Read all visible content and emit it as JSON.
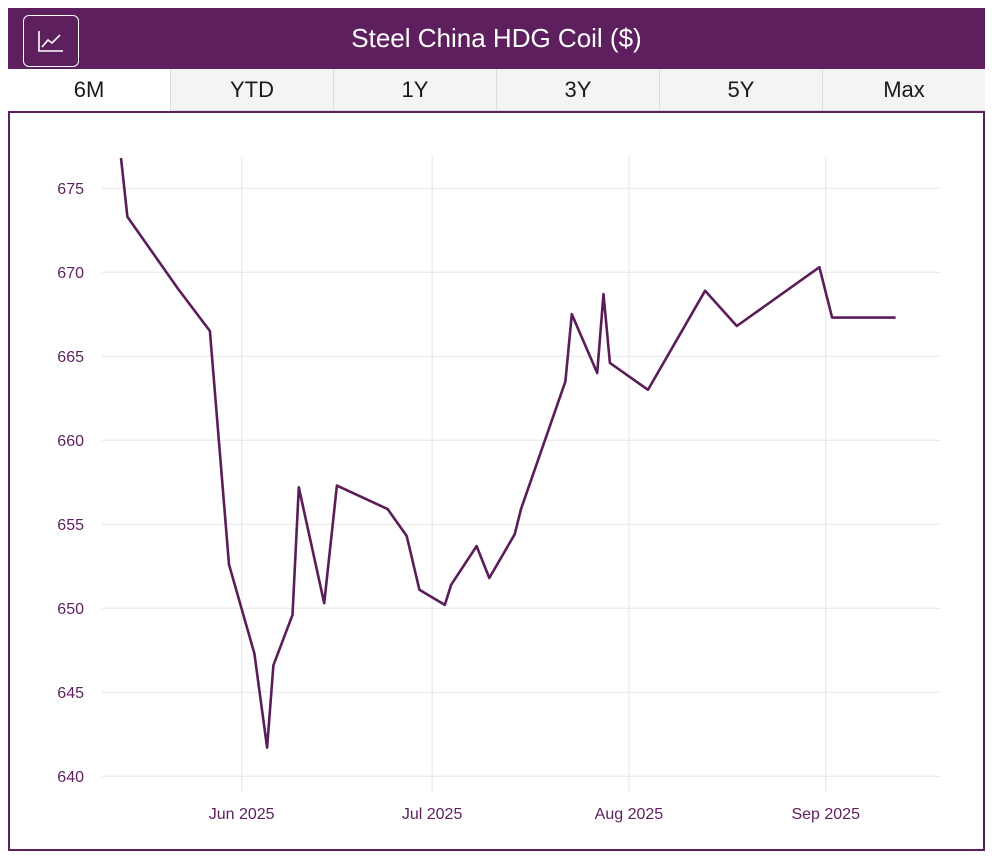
{
  "header": {
    "title": "Steel China HDG Coil ($)",
    "chart_button_icon": "line-chart-icon"
  },
  "tabs": [
    {
      "label": "6M",
      "active": true
    },
    {
      "label": "YTD",
      "active": false
    },
    {
      "label": "1Y",
      "active": false
    },
    {
      "label": "3Y",
      "active": false
    },
    {
      "label": "5Y",
      "active": false
    },
    {
      "label": "Max",
      "active": false
    }
  ],
  "colors": {
    "accent": "#5e1f5f",
    "line": "#5a1d58",
    "grid": "#e6e6e6"
  },
  "chart_data": {
    "type": "line",
    "title": "",
    "xlabel": "",
    "ylabel": "",
    "ylim": [
      639,
      676.8
    ],
    "xlim": [
      "2025-05-10",
      "2025-09-19"
    ],
    "y_ticks": [
      640,
      645,
      650,
      655,
      660,
      665,
      670,
      675
    ],
    "x_ticks": [
      {
        "date": "2025-06-01",
        "label": "Jun 2025"
      },
      {
        "date": "2025-07-01",
        "label": "Jul 2025"
      },
      {
        "date": "2025-08-01",
        "label": "Aug 2025"
      },
      {
        "date": "2025-09-01",
        "label": "Sep 2025"
      }
    ],
    "grid": true,
    "series": [
      {
        "points": [
          {
            "x": "2025-05-13",
            "y": 676.8
          },
          {
            "x": "2025-05-14",
            "y": 673.3
          },
          {
            "x": "2025-05-22",
            "y": 669.0
          },
          {
            "x": "2025-05-27",
            "y": 666.5
          },
          {
            "x": "2025-05-30",
            "y": 652.6
          },
          {
            "x": "2025-06-03",
            "y": 647.3
          },
          {
            "x": "2025-06-05",
            "y": 641.7
          },
          {
            "x": "2025-06-06",
            "y": 646.6
          },
          {
            "x": "2025-06-09",
            "y": 649.6
          },
          {
            "x": "2025-06-10",
            "y": 657.2
          },
          {
            "x": "2025-06-14",
            "y": 650.3
          },
          {
            "x": "2025-06-16",
            "y": 657.3
          },
          {
            "x": "2025-06-24",
            "y": 655.9
          },
          {
            "x": "2025-06-27",
            "y": 654.3
          },
          {
            "x": "2025-06-29",
            "y": 651.1
          },
          {
            "x": "2025-07-03",
            "y": 650.2
          },
          {
            "x": "2025-07-04",
            "y": 651.4
          },
          {
            "x": "2025-07-08",
            "y": 653.7
          },
          {
            "x": "2025-07-10",
            "y": 651.8
          },
          {
            "x": "2025-07-14",
            "y": 654.4
          },
          {
            "x": "2025-07-15",
            "y": 655.9
          },
          {
            "x": "2025-07-22",
            "y": 663.5
          },
          {
            "x": "2025-07-23",
            "y": 667.5
          },
          {
            "x": "2025-07-27",
            "y": 664.0
          },
          {
            "x": "2025-07-28",
            "y": 668.7
          },
          {
            "x": "2025-07-29",
            "y": 664.6
          },
          {
            "x": "2025-08-04",
            "y": 663.0
          },
          {
            "x": "2025-08-13",
            "y": 668.9
          },
          {
            "x": "2025-08-18",
            "y": 666.8
          },
          {
            "x": "2025-08-31",
            "y": 670.3
          },
          {
            "x": "2025-09-02",
            "y": 667.3
          },
          {
            "x": "2025-09-12",
            "y": 667.3
          }
        ]
      }
    ]
  }
}
